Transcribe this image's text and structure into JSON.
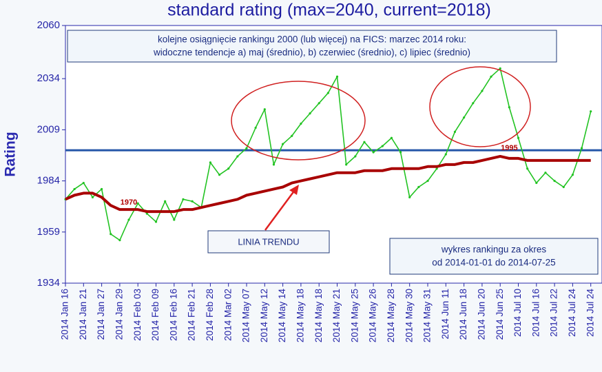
{
  "chart_data": {
    "type": "line",
    "title": "standard rating (max=2040, current=2018)",
    "ylabel": "Rating",
    "ylim": [
      1934,
      2060
    ],
    "yticks": [
      1934,
      1959,
      1984,
      2009,
      2034,
      2060
    ],
    "hline": 1999,
    "hline_color": "#2456a8",
    "categories": [
      "2014 Jan 16",
      null,
      "2014 Jan 21",
      null,
      "2014 Jan 27",
      null,
      "2014 Jan 29",
      null,
      "2014 Feb 03",
      null,
      "2014 Feb 09",
      null,
      "2014 Feb 16",
      null,
      "2014 Feb 21",
      null,
      "2014 Feb 28",
      null,
      "2014 Mar 02",
      null,
      "2014 May 07",
      null,
      "2014 May 12",
      null,
      "2014 May 14",
      null,
      "2014 May 18",
      null,
      "2014 May 18",
      null,
      "2014 May 21",
      null,
      "2014 May 25",
      null,
      "2014 May 26",
      null,
      "2014 May 28",
      null,
      "2014 May 30",
      null,
      "2014 May 31",
      null,
      "2014 Jun 11",
      null,
      "2014 Jun 18",
      null,
      "2014 Jun 20",
      null,
      "2014 Jun 25",
      null,
      "2014 Jul 10",
      null,
      "2014 Jul 16",
      null,
      "2014 Jul 22",
      null,
      "2014 Jul 24",
      null,
      "2014 Jul 24"
    ],
    "series": [
      {
        "color": "#22c322",
        "values": [
          1975,
          1980,
          1983,
          1976,
          1980,
          1958,
          1955,
          1965,
          1973,
          1968,
          1964,
          1974,
          1965,
          1975,
          1974,
          1971,
          1993,
          1987,
          1990,
          1996,
          2000,
          2010,
          2019,
          1992,
          2002,
          2006,
          2012,
          2017,
          2022,
          2027,
          2035,
          1992,
          1996,
          2003,
          1998,
          2001,
          2005,
          1998,
          1976,
          1981,
          1984,
          1990,
          1997,
          2008,
          2015,
          2022,
          2028,
          2035,
          2039,
          2020,
          2005,
          1990,
          1983,
          1988,
          1984,
          1981,
          1987,
          2000,
          2018
        ]
      },
      {
        "color": "#a80000",
        "values": [
          1975,
          1977,
          1978,
          1978,
          1976,
          1972,
          1970,
          1970,
          1970,
          1969,
          1969,
          1969,
          1969,
          1970,
          1970,
          1971,
          1972,
          1973,
          1974,
          1975,
          1977,
          1978,
          1979,
          1980,
          1981,
          1983,
          1984,
          1985,
          1986,
          1987,
          1988,
          1988,
          1988,
          1989,
          1989,
          1989,
          1990,
          1990,
          1990,
          1990,
          1991,
          1991,
          1992,
          1992,
          1993,
          1993,
          1994,
          1995,
          1996,
          1995,
          1995,
          1994,
          1994,
          1994,
          1994,
          1994,
          1994,
          1994,
          1994
        ]
      }
    ],
    "annotations": [
      "1970",
      "1995",
      "LINIA TRENDU"
    ],
    "notes": [
      "kolejne osiągnięcie rankingu 2000 (lub więcej) na FICS: marzec 2014 roku:",
      "widoczne tendencje a) maj (średnio), b) czerwiec (średnio), c) lipiec (średnio)",
      "wykres rankingu za okres",
      "od 2014-01-01 do 2014-07-25"
    ]
  }
}
